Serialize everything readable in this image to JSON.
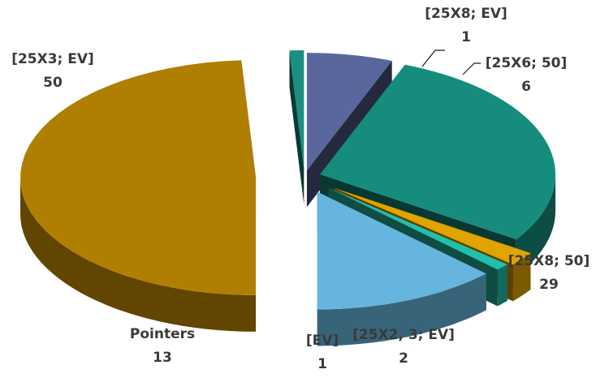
{
  "chart_data": {
    "type": "pie",
    "three_d": true,
    "exploded": true,
    "legend": "none",
    "slices": [
      {
        "name": "[25X3; EV]",
        "value": 50,
        "color": "#B07E00"
      },
      {
        "name": "[25X8; EV]",
        "value": 1,
        "color": "#1B8F80"
      },
      {
        "name": "[25X6; 50]",
        "value": 6,
        "color": "#59679C"
      },
      {
        "name": "[25X8; 50]",
        "value": 29,
        "color": "#168C7D"
      },
      {
        "name": "[25X2, 3; EV]",
        "value": 2,
        "color": "#E0A300"
      },
      {
        "name": "[EV]",
        "value": 1,
        "color": "#22BFAA"
      },
      {
        "name": "Pointers",
        "value": 13,
        "color": "#66B5DE"
      }
    ]
  }
}
